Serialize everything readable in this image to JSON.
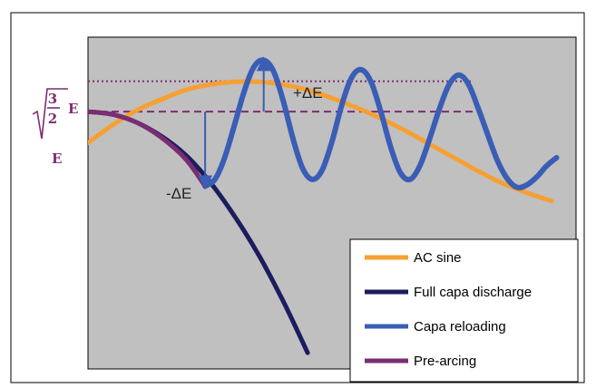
{
  "chart_data": {
    "type": "line",
    "title": "",
    "xlabel": "",
    "ylabel": "",
    "grid": false,
    "legend_position": "bottom-right",
    "y_reference_lines": [
      {
        "label_main": "3",
        "label_sub": "2",
        "label_suffix": "E",
        "value": 1.2247,
        "style": "dotted",
        "color": "#7b2c73"
      },
      {
        "label_main": "E",
        "value": 1.0,
        "style": "dashed",
        "color": "#7b2c73"
      }
    ],
    "annotations": [
      {
        "text": "+ΔE",
        "direction": "up",
        "from_y": 1.0,
        "to_y": 1.38
      },
      {
        "text": "-ΔE",
        "direction": "down",
        "from_y": 1.0,
        "to_y": 0.45
      }
    ],
    "xlim": [
      0,
      1
    ],
    "ylim": [
      -0.9,
      1.55
    ],
    "series": [
      {
        "name": "AC sine",
        "color": "#f7a032",
        "width": 5,
        "x": [
          0,
          0.05,
          0.1,
          0.15,
          0.2,
          0.25,
          0.3,
          0.35,
          0.4,
          0.45,
          0.5,
          0.55,
          0.6,
          0.65,
          0.7,
          0.75,
          0.8,
          0.85,
          0.9,
          0.95
        ],
        "y": [
          0.77,
          0.9,
          1.01,
          1.09,
          1.16,
          1.2,
          1.22,
          1.22,
          1.2,
          1.16,
          1.1,
          1.03,
          0.95,
          0.86,
          0.76,
          0.66,
          0.56,
          0.47,
          0.4,
          0.34
        ]
      },
      {
        "name": "Full capa discharge",
        "color": "#1c1c5e",
        "width": 5,
        "x": [
          0,
          0.05,
          0.1,
          0.15,
          0.2,
          0.25,
          0.3,
          0.35,
          0.4,
          0.45
        ],
        "y": [
          1.0,
          0.98,
          0.92,
          0.82,
          0.68,
          0.48,
          0.23,
          -0.06,
          -0.4,
          -0.78
        ]
      },
      {
        "name": "Capa reloading",
        "color": "#3a5db5",
        "width": 6,
        "x": [
          0.24,
          0.26,
          0.28,
          0.3,
          0.32,
          0.34,
          0.36,
          0.38,
          0.4,
          0.42,
          0.44,
          0.46,
          0.48,
          0.5,
          0.52,
          0.54,
          0.56,
          0.58,
          0.6,
          0.62,
          0.64,
          0.66,
          0.68,
          0.7,
          0.72,
          0.74,
          0.76,
          0.78,
          0.8,
          0.82,
          0.84,
          0.86,
          0.88,
          0.9,
          0.92,
          0.94,
          0.96
        ],
        "y": [
          0.45,
          0.5,
          0.66,
          0.9,
          1.15,
          1.33,
          1.38,
          1.3,
          1.08,
          0.8,
          0.58,
          0.5,
          0.57,
          0.78,
          1.05,
          1.25,
          1.31,
          1.22,
          1.0,
          0.74,
          0.55,
          0.5,
          0.6,
          0.8,
          1.02,
          1.2,
          1.27,
          1.2,
          1.02,
          0.82,
          0.63,
          0.5,
          0.44,
          0.46,
          0.52,
          0.6,
          0.66
        ]
      },
      {
        "name": "Pre-arcing",
        "color": "#7b2c73",
        "width": 5,
        "x": [
          0,
          0.05,
          0.1,
          0.15,
          0.2,
          0.24
        ],
        "y": [
          1.0,
          0.98,
          0.92,
          0.81,
          0.65,
          0.45
        ]
      }
    ],
    "legend_order": [
      "AC sine",
      "Full capa discharge",
      "Capa reloading",
      "Pre-arcing"
    ]
  }
}
